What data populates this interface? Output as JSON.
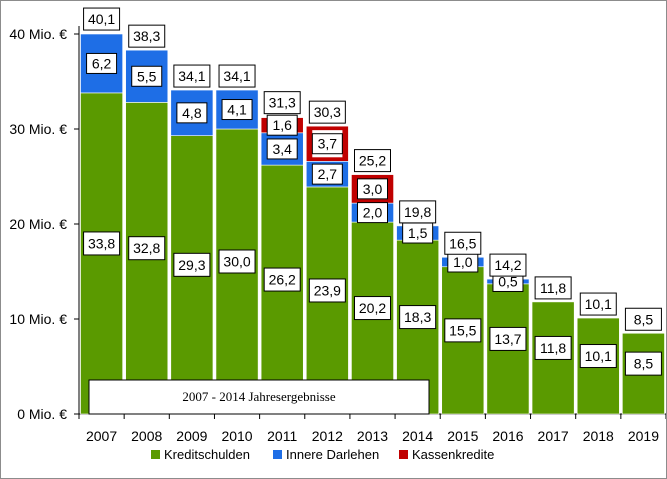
{
  "chart_data": {
    "type": "bar",
    "stacked": true,
    "categories": [
      "2007",
      "2008",
      "2009",
      "2010",
      "2011",
      "2012",
      "2013",
      "2014",
      "2015",
      "2016",
      "2017",
      "2018",
      "2019"
    ],
    "series": [
      {
        "name": "Kreditschulden",
        "color": "#5a9a00",
        "values": [
          33.8,
          32.8,
          29.3,
          30.0,
          26.2,
          23.9,
          20.2,
          18.3,
          15.5,
          13.7,
          11.8,
          10.1,
          8.5
        ]
      },
      {
        "name": "Innere Darlehen",
        "color": "#1e6ee6",
        "values": [
          6.2,
          5.5,
          4.8,
          4.1,
          3.4,
          2.7,
          2.0,
          1.5,
          1.0,
          0.5,
          0,
          0,
          0
        ]
      },
      {
        "name": "Kassenkredite",
        "color": "#c00000",
        "values": [
          0,
          0,
          0,
          0,
          1.6,
          3.7,
          3.0,
          0,
          0,
          0,
          0,
          0,
          0
        ]
      }
    ],
    "totals": [
      40.1,
      38.3,
      34.1,
      34.1,
      31.3,
      30.3,
      25.2,
      19.8,
      16.5,
      14.2,
      11.8,
      10.1,
      8.5
    ],
    "segment_labels": {
      "Kreditschulden": [
        "33,8",
        "32,8",
        "29,3",
        "30,0",
        "26,2",
        "23,9",
        "20,2",
        "18,3",
        "15,5",
        "13,7",
        "11,8",
        "10,1",
        "8,5"
      ],
      "Innere Darlehen": [
        "6,2",
        "5,5",
        "4,8",
        "4,1",
        "3,4",
        "2,7",
        "2,0",
        "1,5",
        "1,0",
        "0,5",
        "",
        "",
        ""
      ],
      "Kassenkredite": [
        "",
        "",
        "",
        "",
        "1,6",
        "3,7",
        "3,0",
        "",
        "",
        "",
        "",
        "",
        ""
      ]
    },
    "total_labels": [
      "40,1",
      "38,3",
      "34,1",
      "34,1",
      "31,3",
      "30,3",
      "25,2",
      "19,8",
      "16,5",
      "14,2",
      "11,8",
      "10,1",
      "8,5"
    ],
    "ylim": [
      0,
      40
    ],
    "yticks": [
      0,
      10,
      20,
      30,
      40
    ],
    "ytick_labels": [
      "0 Mio. €",
      "10 Mio. €",
      "20 Mio. €",
      "30 Mio. €",
      "40 Mio. €"
    ],
    "grid": false,
    "legend_position": "bottom",
    "annotation": "2007 - 2014 Jahresergebnisse"
  }
}
